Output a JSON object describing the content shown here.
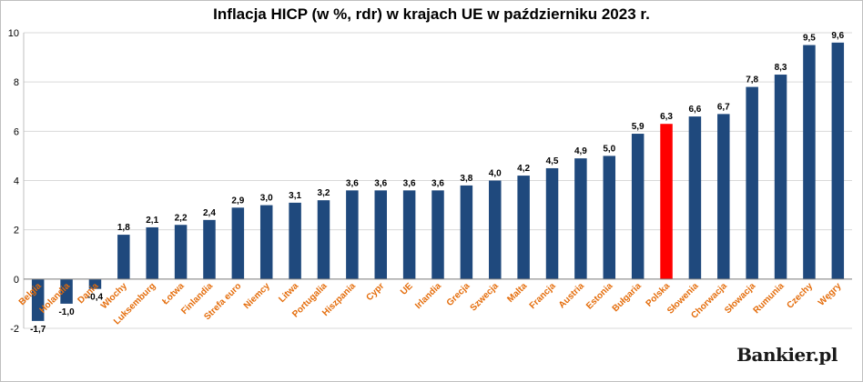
{
  "chart_data": {
    "type": "bar",
    "title": "Inflacja HICP (w %, rdr) w krajach UE w październiku 2023 r.",
    "xlabel": "",
    "ylabel": "",
    "ylim": [
      -2,
      10
    ],
    "yticks": [
      -2,
      0,
      2,
      4,
      6,
      8,
      10
    ],
    "grid": true,
    "categories": [
      "Belgia",
      "Holandia",
      "Dania",
      "Włochy",
      "Luksemburg",
      "Łotwa",
      "Finlandia",
      "Strefa euro",
      "Niemcy",
      "Litwa",
      "Portugalia",
      "Hiszpania",
      "Cypr",
      "UE",
      "Irlandia",
      "Grecja",
      "Szwecja",
      "Malta",
      "Francja",
      "Austria",
      "Estonia",
      "Bułgaria",
      "Polska",
      "Słowenia",
      "Chorwacja",
      "Słowacja",
      "Rumunia",
      "Czechy",
      "Węgry"
    ],
    "values": [
      -1.7,
      -1.0,
      -0.4,
      1.8,
      2.1,
      2.2,
      2.4,
      2.9,
      3.0,
      3.1,
      3.2,
      3.6,
      3.6,
      3.6,
      3.6,
      3.8,
      4.0,
      4.2,
      4.5,
      4.9,
      5.0,
      5.9,
      6.3,
      6.6,
      6.7,
      7.8,
      8.3,
      9.5,
      9.6
    ],
    "data_labels": [
      "-1,7",
      "-1,0",
      "-0,4",
      "1,8",
      "2,1",
      "2,2",
      "2,4",
      "2,9",
      "3,0",
      "3,1",
      "3,2",
      "3,6",
      "3,6",
      "3,6",
      "3,6",
      "3,8",
      "4,0",
      "4,2",
      "4,5",
      "4,9",
      "5,0",
      "5,9",
      "6,3",
      "6,6",
      "6,7",
      "7,8",
      "8,3",
      "9,5",
      "9,6"
    ],
    "highlight": "Polska",
    "colors": {
      "bar": "#1f497d",
      "highlight": "#ff0000",
      "category_label": "#e46c0a",
      "grid": "#d9d9d9"
    }
  },
  "brand": {
    "name": "Bankier",
    "tld": ".pl"
  }
}
